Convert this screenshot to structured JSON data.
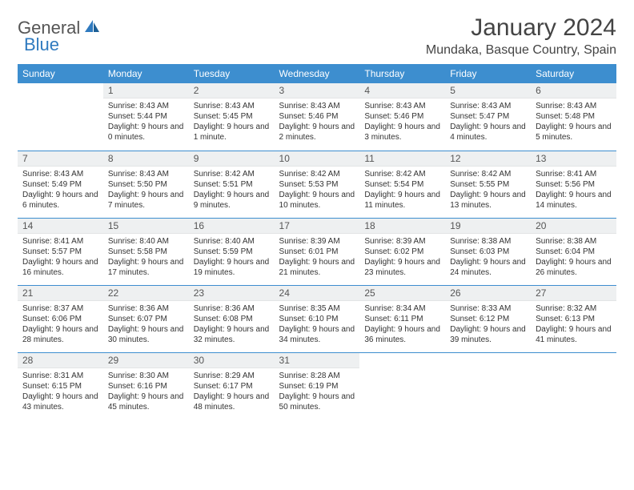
{
  "brand": {
    "word1": "General",
    "word2": "Blue"
  },
  "title": "January 2024",
  "location": "Mundaka, Basque Country, Spain",
  "colors": {
    "header_bg": "#3d8ecf",
    "header_text": "#ffffff",
    "daynum_bg": "#eef0f1",
    "row_border": "#3d8ecf",
    "body_text": "#333333",
    "brand_gray": "#555555",
    "brand_blue": "#2f7abf"
  },
  "dow": [
    "Sunday",
    "Monday",
    "Tuesday",
    "Wednesday",
    "Thursday",
    "Friday",
    "Saturday"
  ],
  "weeks": [
    [
      null,
      {
        "n": "1",
        "sr": "8:43 AM",
        "ss": "5:44 PM",
        "dl": "9 hours and 0 minutes."
      },
      {
        "n": "2",
        "sr": "8:43 AM",
        "ss": "5:45 PM",
        "dl": "9 hours and 1 minute."
      },
      {
        "n": "3",
        "sr": "8:43 AM",
        "ss": "5:46 PM",
        "dl": "9 hours and 2 minutes."
      },
      {
        "n": "4",
        "sr": "8:43 AM",
        "ss": "5:46 PM",
        "dl": "9 hours and 3 minutes."
      },
      {
        "n": "5",
        "sr": "8:43 AM",
        "ss": "5:47 PM",
        "dl": "9 hours and 4 minutes."
      },
      {
        "n": "6",
        "sr": "8:43 AM",
        "ss": "5:48 PM",
        "dl": "9 hours and 5 minutes."
      }
    ],
    [
      {
        "n": "7",
        "sr": "8:43 AM",
        "ss": "5:49 PM",
        "dl": "9 hours and 6 minutes."
      },
      {
        "n": "8",
        "sr": "8:43 AM",
        "ss": "5:50 PM",
        "dl": "9 hours and 7 minutes."
      },
      {
        "n": "9",
        "sr": "8:42 AM",
        "ss": "5:51 PM",
        "dl": "9 hours and 9 minutes."
      },
      {
        "n": "10",
        "sr": "8:42 AM",
        "ss": "5:53 PM",
        "dl": "9 hours and 10 minutes."
      },
      {
        "n": "11",
        "sr": "8:42 AM",
        "ss": "5:54 PM",
        "dl": "9 hours and 11 minutes."
      },
      {
        "n": "12",
        "sr": "8:42 AM",
        "ss": "5:55 PM",
        "dl": "9 hours and 13 minutes."
      },
      {
        "n": "13",
        "sr": "8:41 AM",
        "ss": "5:56 PM",
        "dl": "9 hours and 14 minutes."
      }
    ],
    [
      {
        "n": "14",
        "sr": "8:41 AM",
        "ss": "5:57 PM",
        "dl": "9 hours and 16 minutes."
      },
      {
        "n": "15",
        "sr": "8:40 AM",
        "ss": "5:58 PM",
        "dl": "9 hours and 17 minutes."
      },
      {
        "n": "16",
        "sr": "8:40 AM",
        "ss": "5:59 PM",
        "dl": "9 hours and 19 minutes."
      },
      {
        "n": "17",
        "sr": "8:39 AM",
        "ss": "6:01 PM",
        "dl": "9 hours and 21 minutes."
      },
      {
        "n": "18",
        "sr": "8:39 AM",
        "ss": "6:02 PM",
        "dl": "9 hours and 23 minutes."
      },
      {
        "n": "19",
        "sr": "8:38 AM",
        "ss": "6:03 PM",
        "dl": "9 hours and 24 minutes."
      },
      {
        "n": "20",
        "sr": "8:38 AM",
        "ss": "6:04 PM",
        "dl": "9 hours and 26 minutes."
      }
    ],
    [
      {
        "n": "21",
        "sr": "8:37 AM",
        "ss": "6:06 PM",
        "dl": "9 hours and 28 minutes."
      },
      {
        "n": "22",
        "sr": "8:36 AM",
        "ss": "6:07 PM",
        "dl": "9 hours and 30 minutes."
      },
      {
        "n": "23",
        "sr": "8:36 AM",
        "ss": "6:08 PM",
        "dl": "9 hours and 32 minutes."
      },
      {
        "n": "24",
        "sr": "8:35 AM",
        "ss": "6:10 PM",
        "dl": "9 hours and 34 minutes."
      },
      {
        "n": "25",
        "sr": "8:34 AM",
        "ss": "6:11 PM",
        "dl": "9 hours and 36 minutes."
      },
      {
        "n": "26",
        "sr": "8:33 AM",
        "ss": "6:12 PM",
        "dl": "9 hours and 39 minutes."
      },
      {
        "n": "27",
        "sr": "8:32 AM",
        "ss": "6:13 PM",
        "dl": "9 hours and 41 minutes."
      }
    ],
    [
      {
        "n": "28",
        "sr": "8:31 AM",
        "ss": "6:15 PM",
        "dl": "9 hours and 43 minutes."
      },
      {
        "n": "29",
        "sr": "8:30 AM",
        "ss": "6:16 PM",
        "dl": "9 hours and 45 minutes."
      },
      {
        "n": "30",
        "sr": "8:29 AM",
        "ss": "6:17 PM",
        "dl": "9 hours and 48 minutes."
      },
      {
        "n": "31",
        "sr": "8:28 AM",
        "ss": "6:19 PM",
        "dl": "9 hours and 50 minutes."
      },
      null,
      null,
      null
    ]
  ],
  "labels": {
    "sunrise": "Sunrise:",
    "sunset": "Sunset:",
    "daylight": "Daylight:"
  }
}
